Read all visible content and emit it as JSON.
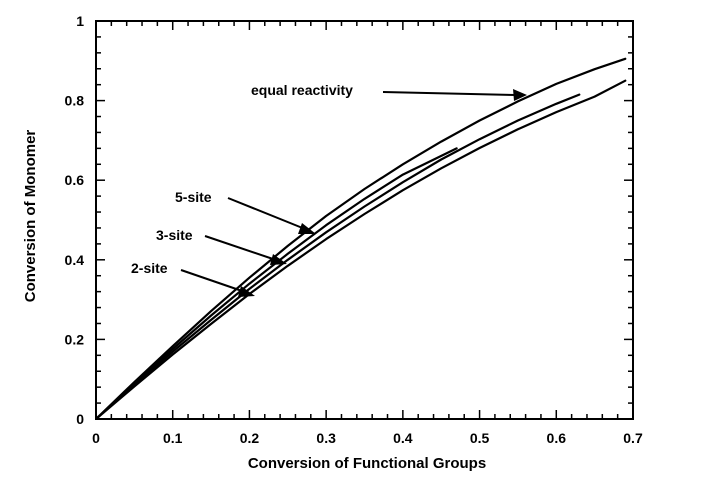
{
  "chart_data": {
    "type": "line",
    "title": "",
    "xlabel": "Conversion of Functional Groups",
    "ylabel": "Conversion of Monomer",
    "xlim": [
      0,
      0.7
    ],
    "ylim": [
      0,
      1
    ],
    "x_ticks": [
      "0",
      "0.1",
      "0.2",
      "0.3",
      "0.4",
      "0.5",
      "0.6",
      "0.7"
    ],
    "y_ticks": [
      "0",
      "0.2",
      "0.4",
      "0.6",
      "0.8",
      "1"
    ],
    "x_tick_values": [
      0,
      0.1,
      0.2,
      0.3,
      0.4,
      0.5,
      0.6,
      0.7
    ],
    "y_tick_values": [
      0,
      0.2,
      0.4,
      0.6,
      0.8,
      1.0
    ],
    "grid": false,
    "series": [
      {
        "name": "equal reactivity",
        "x": [
          0,
          0.05,
          0.1,
          0.15,
          0.2,
          0.25,
          0.3,
          0.35,
          0.4,
          0.45,
          0.5,
          0.55,
          0.6,
          0.65,
          0.69
        ],
        "y": [
          0,
          0.093,
          0.183,
          0.271,
          0.355,
          0.435,
          0.51,
          0.578,
          0.64,
          0.697,
          0.75,
          0.798,
          0.842,
          0.879,
          0.905
        ]
      },
      {
        "name": "5-site",
        "x": [
          0,
          0.05,
          0.1,
          0.15,
          0.2,
          0.25,
          0.3,
          0.35,
          0.4,
          0.47
        ],
        "y": [
          0,
          0.09,
          0.176,
          0.26,
          0.34,
          0.415,
          0.487,
          0.553,
          0.614,
          0.68
        ]
      },
      {
        "name": "3-site",
        "x": [
          0,
          0.05,
          0.1,
          0.15,
          0.2,
          0.25,
          0.3,
          0.35,
          0.4,
          0.45,
          0.5,
          0.55,
          0.6,
          0.63
        ],
        "y": [
          0,
          0.086,
          0.169,
          0.249,
          0.327,
          0.4,
          0.469,
          0.534,
          0.595,
          0.652,
          0.703,
          0.75,
          0.792,
          0.815
        ]
      },
      {
        "name": "2-site",
        "x": [
          0,
          0.05,
          0.1,
          0.15,
          0.2,
          0.25,
          0.3,
          0.35,
          0.4,
          0.45,
          0.5,
          0.55,
          0.6,
          0.65,
          0.69
        ],
        "y": [
          0,
          0.082,
          0.162,
          0.239,
          0.314,
          0.385,
          0.452,
          0.515,
          0.575,
          0.63,
          0.681,
          0.728,
          0.771,
          0.81,
          0.85
        ]
      }
    ],
    "annotations": [
      {
        "text": "equal reactivity",
        "series": "equal reactivity"
      },
      {
        "text": "5-site",
        "series": "5-site"
      },
      {
        "text": "3-site",
        "series": "3-site"
      },
      {
        "text": "2-site",
        "series": "2-site"
      }
    ]
  }
}
